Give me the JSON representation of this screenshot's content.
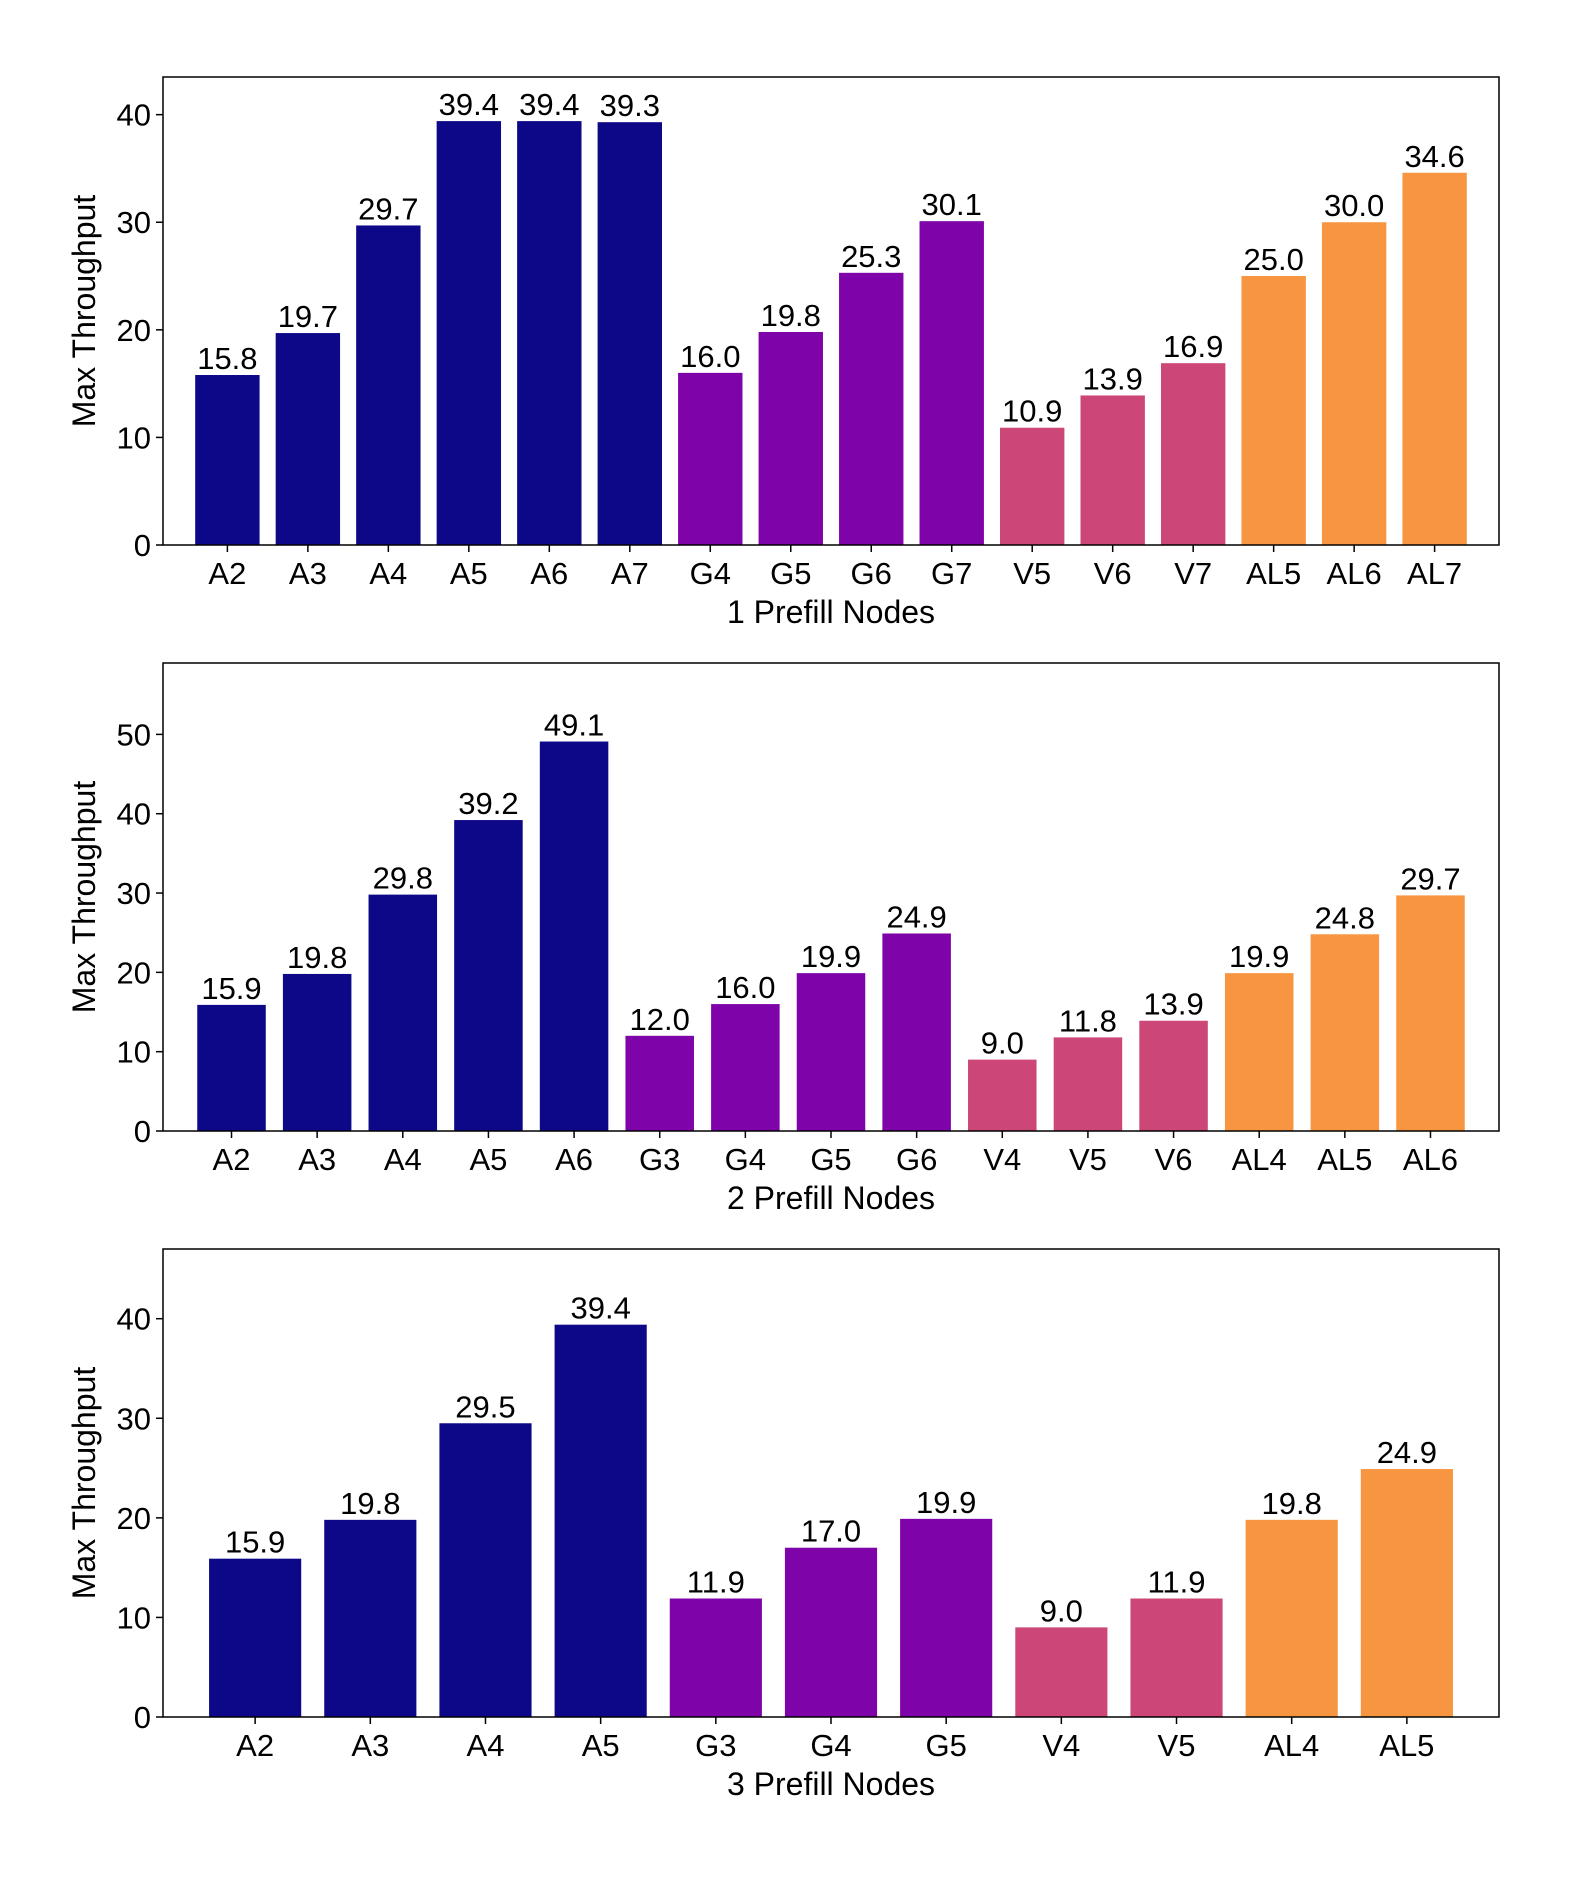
{
  "colors": {
    "A": "#0d0887",
    "G": "#7e03a8",
    "V": "#cc4778",
    "AL": "#f89540"
  },
  "chart_data": [
    {
      "type": "bar",
      "title": "",
      "xlabel": "1 Prefill Nodes",
      "ylabel": "Max Throughput",
      "ylim": [
        0,
        43.5
      ],
      "yticks": [
        0,
        10,
        20,
        30,
        40
      ],
      "categories": [
        "A2",
        "A3",
        "A4",
        "A5",
        "A6",
        "A7",
        "G4",
        "G5",
        "G6",
        "G7",
        "V5",
        "V6",
        "V7",
        "AL5",
        "AL6",
        "AL7"
      ],
      "values": [
        15.8,
        19.7,
        29.7,
        39.4,
        39.4,
        39.3,
        16.0,
        19.8,
        25.3,
        30.1,
        10.9,
        13.9,
        16.9,
        25.0,
        30.0,
        34.6
      ],
      "value_labels": [
        "15.8",
        "19.7",
        "29.7",
        "39.4",
        "39.4",
        "39.3",
        "16.0",
        "19.8",
        "25.3",
        "30.1",
        "10.9",
        "13.9",
        "16.9",
        "25.0",
        "30.0",
        "34.6"
      ],
      "groups": [
        "A",
        "A",
        "A",
        "A",
        "A",
        "A",
        "G",
        "G",
        "G",
        "G",
        "V",
        "V",
        "V",
        "AL",
        "AL",
        "AL"
      ]
    },
    {
      "type": "bar",
      "title": "",
      "xlabel": "2 Prefill Nodes",
      "ylabel": "Max Throughput",
      "ylim": [
        0,
        59
      ],
      "yticks": [
        0,
        10,
        20,
        30,
        40,
        50
      ],
      "categories": [
        "A2",
        "A3",
        "A4",
        "A5",
        "A6",
        "G3",
        "G4",
        "G5",
        "G6",
        "V4",
        "V5",
        "V6",
        "AL4",
        "AL5",
        "AL6"
      ],
      "values": [
        15.9,
        19.8,
        29.8,
        39.2,
        49.1,
        12.0,
        16.0,
        19.9,
        24.9,
        9.0,
        11.8,
        13.9,
        19.9,
        24.8,
        29.7
      ],
      "value_labels": [
        "15.9",
        "19.8",
        "29.8",
        "39.2",
        "49.1",
        "12.0",
        "16.0",
        "19.9",
        "24.9",
        "9.0",
        "11.8",
        "13.9",
        "19.9",
        "24.8",
        "29.7"
      ],
      "groups": [
        "A",
        "A",
        "A",
        "A",
        "A",
        "G",
        "G",
        "G",
        "G",
        "V",
        "V",
        "V",
        "AL",
        "AL",
        "AL"
      ]
    },
    {
      "type": "bar",
      "title": "",
      "xlabel": "3 Prefill Nodes",
      "ylabel": "Max Throughput",
      "ylim": [
        0,
        47
      ],
      "yticks": [
        0,
        10,
        20,
        30,
        40
      ],
      "categories": [
        "A2",
        "A3",
        "A4",
        "A5",
        "G3",
        "G4",
        "G5",
        "V4",
        "V5",
        "AL4",
        "AL5"
      ],
      "values": [
        15.9,
        19.8,
        29.5,
        39.4,
        11.9,
        17.0,
        19.9,
        9.0,
        11.9,
        19.8,
        24.9
      ],
      "value_labels": [
        "15.9",
        "19.8",
        "29.5",
        "39.4",
        "11.9",
        "17.0",
        "19.9",
        "9.0",
        "11.9",
        "19.8",
        "24.9"
      ],
      "groups": [
        "A",
        "A",
        "A",
        "A",
        "G",
        "G",
        "G",
        "V",
        "V",
        "AL",
        "AL"
      ]
    }
  ]
}
